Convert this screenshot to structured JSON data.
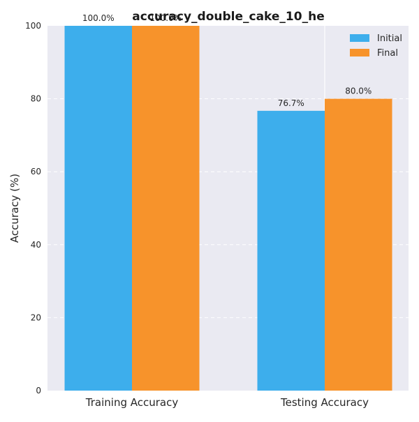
{
  "chart_data": {
    "type": "bar",
    "title": "accuracy_double_cake_10_he",
    "xlabel": "",
    "ylabel": "Accuracy (%)",
    "ylim": [
      0,
      100
    ],
    "yticks": [
      0,
      20,
      40,
      60,
      80,
      100
    ],
    "categories": [
      "Training Accuracy",
      "Testing Accuracy"
    ],
    "series": [
      {
        "name": "Initial",
        "color": "#3daeec",
        "values": [
          100.0,
          76.7
        ],
        "labels": [
          "100.0%",
          "76.7%"
        ]
      },
      {
        "name": "Final",
        "color": "#f7932b",
        "values": [
          100.0,
          80.0
        ],
        "labels": [
          "100.0%",
          "80.0%"
        ]
      }
    ],
    "legend_position": "top-right",
    "grid": true,
    "plot_background": "#eaeaf2",
    "grid_color": "#ffffff"
  }
}
